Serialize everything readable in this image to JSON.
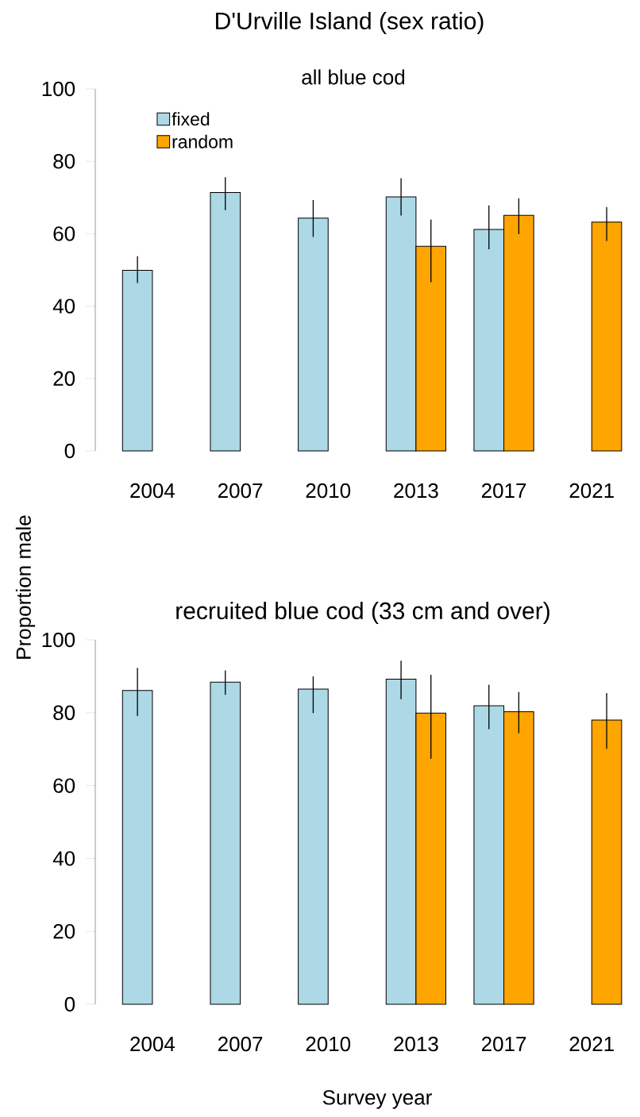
{
  "chart_data": [
    {
      "type": "bar",
      "title": "D'Urville Island (sex ratio)",
      "subtitle": "all blue cod",
      "ylabel": "Proportion male",
      "categories": [
        "2004",
        "2007",
        "2010",
        "2013",
        "2017",
        "2021"
      ],
      "ylim": [
        0,
        100
      ],
      "yticks": [
        0,
        20,
        40,
        60,
        80,
        100
      ],
      "legend": "top left",
      "series": [
        {
          "name": "fixed",
          "color": "#add8e6",
          "values": [
            49.9,
            71.4,
            64.3,
            70.2,
            61.2,
            null
          ],
          "errors": [
            [
              46.4,
              53.8
            ],
            [
              66.5,
              75.6
            ],
            [
              59.1,
              69.3
            ],
            [
              65.0,
              75.3
            ],
            [
              55.7,
              67.8
            ],
            null
          ]
        },
        {
          "name": "random",
          "color": "#ffa500",
          "values": [
            null,
            null,
            null,
            56.5,
            65.1,
            63.2
          ],
          "errors": [
            null,
            null,
            null,
            [
              46.6,
              63.9
            ],
            [
              59.9,
              69.8
            ],
            [
              58.0,
              67.4
            ]
          ]
        }
      ]
    },
    {
      "type": "bar",
      "title": "recruited blue cod (33 cm and over)",
      "xlabel": "Survey year",
      "categories": [
        "2004",
        "2007",
        "2010",
        "2013",
        "2017",
        "2021"
      ],
      "ylim": [
        0,
        100
      ],
      "yticks": [
        0,
        20,
        40,
        60,
        80,
        100
      ],
      "series": [
        {
          "color": "#add8e6",
          "values": [
            86.1,
            88.4,
            86.5,
            89.2,
            81.9,
            null
          ],
          "errors": [
            [
              79.1,
              92.3
            ],
            [
              84.9,
              91.6
            ],
            [
              79.9,
              90.0
            ],
            [
              83.7,
              94.3
            ],
            [
              75.5,
              87.7
            ],
            null
          ]
        },
        {
          "color": "#ffa500",
          "values": [
            null,
            null,
            null,
            79.9,
            80.3,
            78.0
          ],
          "errors": [
            null,
            null,
            null,
            [
              67.4,
              90.4
            ],
            [
              74.4,
              85.7
            ],
            [
              70.1,
              85.4
            ]
          ]
        }
      ]
    }
  ]
}
